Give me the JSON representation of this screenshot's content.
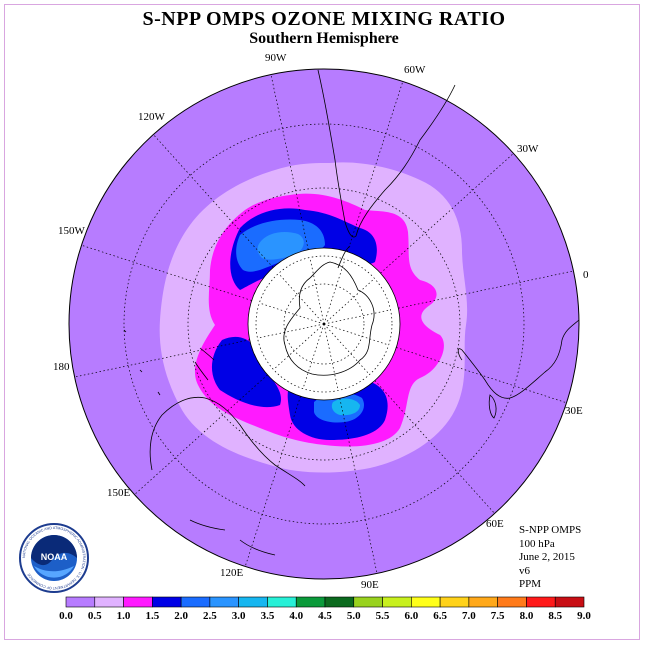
{
  "title": "S-NPP OMPS OZONE MIXING RATIO",
  "subtitle": "Southern Hemisphere",
  "longitude_labels": [
    "90W",
    "60W",
    "30W",
    "0",
    "30E",
    "60E",
    "90E",
    "120E",
    "150E",
    "180",
    "150W",
    "120W"
  ],
  "info": {
    "instrument": "S-NPP OMPS",
    "level": "100 hPa",
    "date": "June 2, 2015",
    "version": "v6",
    "units": "PPM"
  },
  "logo": {
    "text": "NOAA",
    "ring_text": "NATIONAL OCEANIC AND ATMOSPHERIC ADMINISTRATION · U.S. DEPARTMENT OF COMMERCE"
  },
  "colorbar": {
    "ticks": [
      "0.0",
      "0.5",
      "1.0",
      "1.5",
      "2.0",
      "2.5",
      "3.0",
      "3.5",
      "4.0",
      "4.5",
      "5.0",
      "5.5",
      "6.0",
      "6.5",
      "7.0",
      "7.5",
      "8.0",
      "8.5",
      "9.0"
    ],
    "colors": [
      "#b77cff",
      "#e0b2ff",
      "#ff1aff",
      "#0000e6",
      "#1a6cff",
      "#2a94ff",
      "#16b6f0",
      "#27f0d7",
      "#0a9a3a",
      "#0b6a1e",
      "#99d21e",
      "#c8f01e",
      "#ffff1a",
      "#ffd21a",
      "#ffa81a",
      "#ff7a1a",
      "#ff1a1a",
      "#c80e14"
    ]
  },
  "colors": {
    "background_ozone": "#b77cff",
    "band_0_5": "#e0b2ff",
    "band_1_0": "#ff1aff",
    "band_1_5": "#0000e6",
    "band_2_0": "#1a6cff",
    "band_2_5": "#2a94ff",
    "band_3_0": "#16b6f0"
  }
}
